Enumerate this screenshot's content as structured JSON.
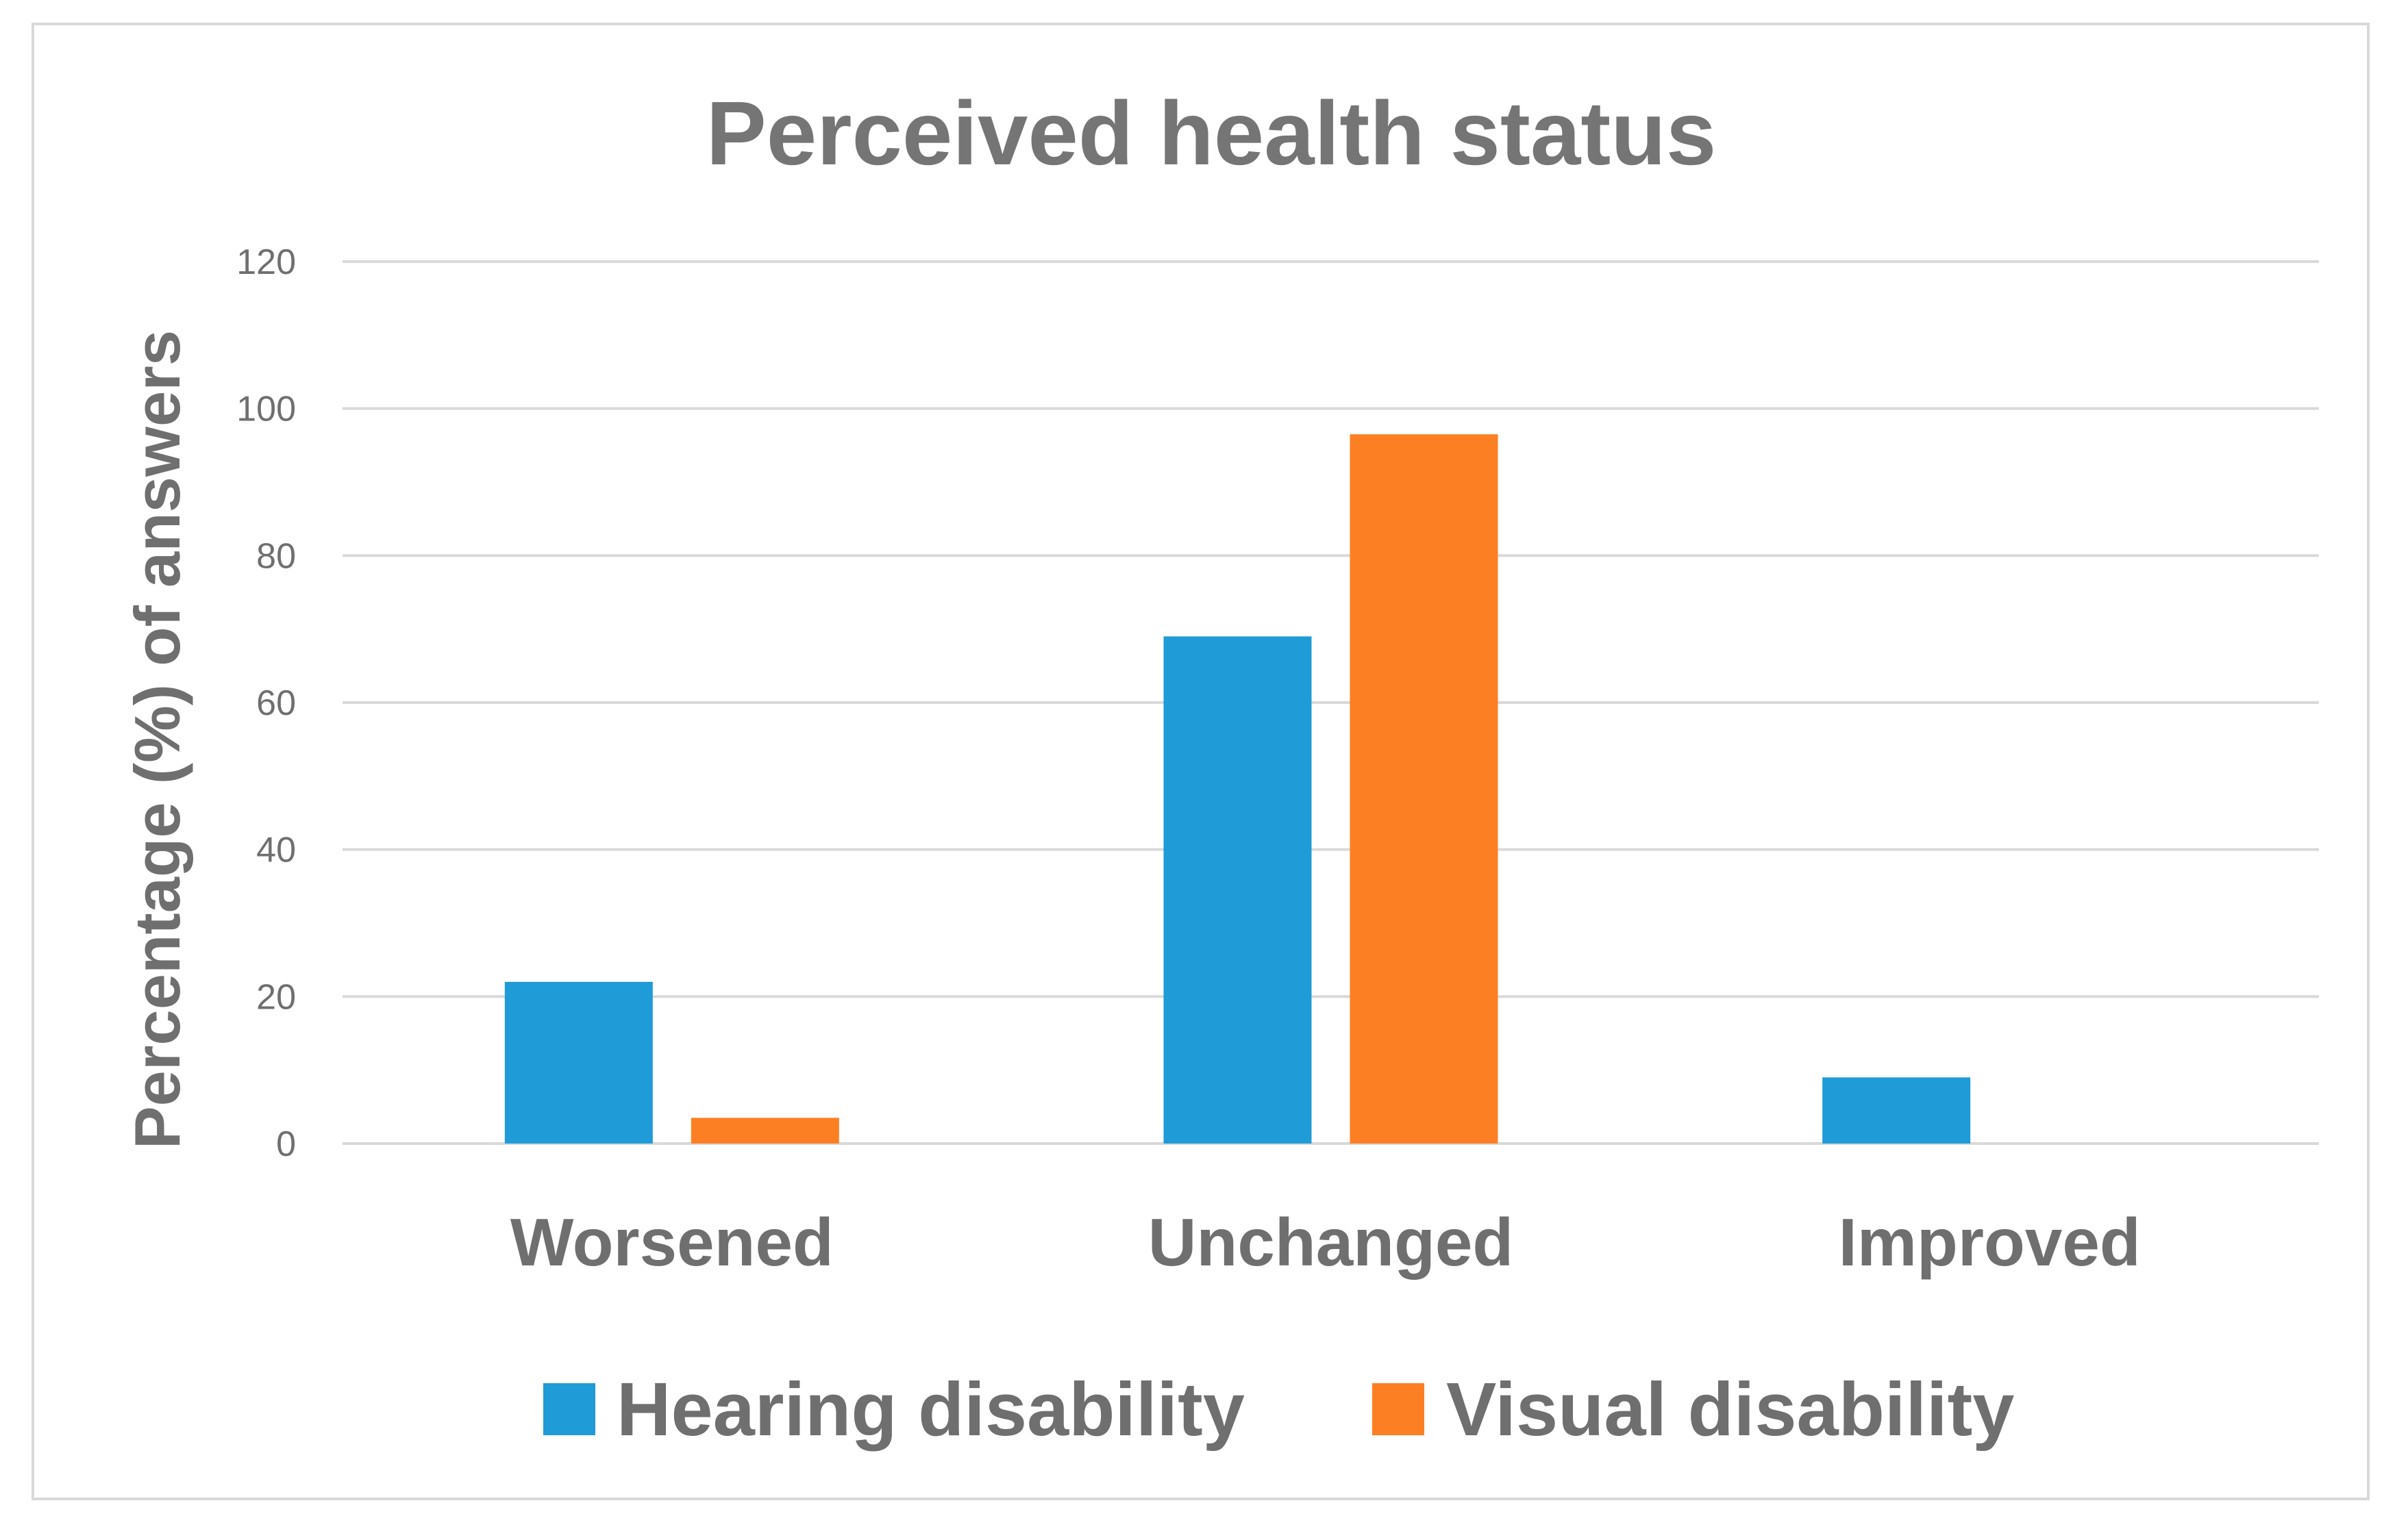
{
  "chart_data": {
    "type": "bar",
    "title": "Perceived health status",
    "xlabel": "",
    "ylabel": "Percentage (%) of answers",
    "categories": [
      "Worsened",
      "Unchanged",
      "Improved"
    ],
    "series": [
      {
        "name": "Hearing disability",
        "color": "#1f9bd7",
        "values": [
          22,
          69,
          9
        ]
      },
      {
        "name": "Visual disability",
        "color": "#fd7f23",
        "values": [
          3.5,
          96.5,
          0
        ]
      }
    ],
    "ylim": [
      0,
      120
    ],
    "yticks": [
      0,
      20,
      40,
      60,
      80,
      100,
      120
    ],
    "grid": true,
    "legend_position": "bottom"
  }
}
